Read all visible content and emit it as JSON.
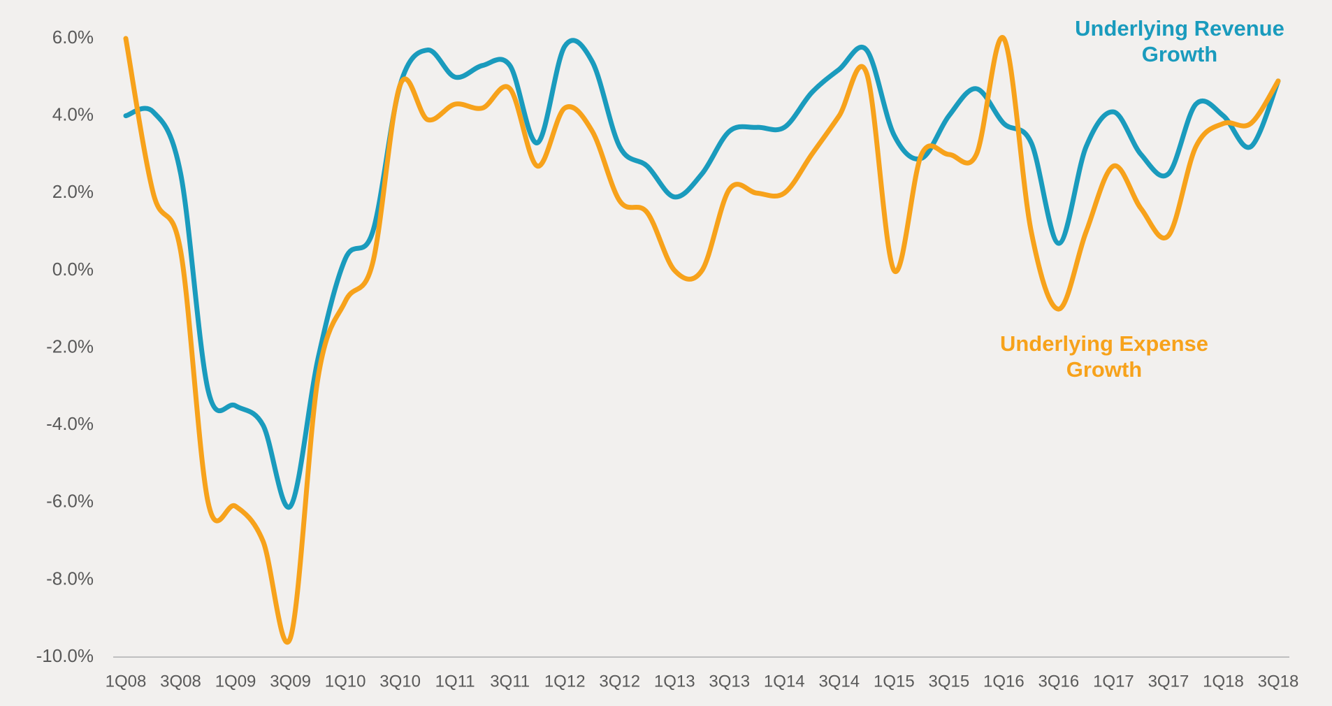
{
  "chart_data": {
    "type": "line",
    "categories": [
      "1Q08",
      null,
      "3Q08",
      null,
      "1Q09",
      null,
      "3Q09",
      null,
      "1Q10",
      null,
      "3Q10",
      null,
      "1Q11",
      null,
      "3Q11",
      null,
      "1Q12",
      null,
      "3Q12",
      null,
      "1Q13",
      null,
      "3Q13",
      null,
      "1Q14",
      null,
      "3Q14",
      null,
      "1Q15",
      null,
      "3Q15",
      null,
      "1Q16",
      null,
      "3Q16",
      null,
      "1Q17",
      null,
      "3Q17",
      null,
      "1Q18",
      null,
      "3Q18"
    ],
    "series": [
      {
        "name": "Underlying Revenue Growth",
        "color": "#1a9bbd",
        "values": [
          4.0,
          4.1,
          2.5,
          -3.1,
          -3.5,
          -4.0,
          -6.1,
          -2.3,
          0.3,
          1.0,
          4.8,
          5.7,
          5.0,
          5.3,
          5.3,
          3.3,
          5.8,
          5.4,
          3.2,
          2.7,
          1.9,
          2.5,
          3.6,
          3.7,
          3.7,
          4.6,
          5.2,
          5.7,
          3.5,
          2.9,
          4.0,
          4.7,
          3.8,
          3.3,
          0.7,
          3.2,
          4.1,
          3.0,
          2.5,
          4.3,
          4.0,
          3.2,
          4.9
        ]
      },
      {
        "name": "Underlying Expense Growth",
        "color": "#f7a21b",
        "values": [
          6.0,
          2.0,
          0.5,
          -6.0,
          -6.1,
          -7.0,
          -9.5,
          -2.8,
          -0.8,
          0.2,
          4.8,
          3.9,
          4.3,
          4.2,
          4.7,
          2.7,
          4.2,
          3.6,
          1.8,
          1.5,
          0.0,
          0.0,
          2.1,
          2.0,
          2.0,
          3.0,
          4.0,
          5.1,
          0.0,
          3.0,
          3.0,
          3.0,
          6.0,
          1.0,
          -1.0,
          1.0,
          2.7,
          1.6,
          0.9,
          3.2,
          3.8,
          3.8,
          4.9
        ]
      }
    ],
    "ylim": [
      -10,
      6
    ],
    "yticks": [
      {
        "value": 6,
        "label": "6.0%"
      },
      {
        "value": 4,
        "label": "4.0%"
      },
      {
        "value": 2,
        "label": "2.0%"
      },
      {
        "value": 0,
        "label": "0.0%"
      },
      {
        "value": -2,
        "label": "-2.0%"
      },
      {
        "value": -4,
        "label": "-4.0%"
      },
      {
        "value": -6,
        "label": "-6.0%"
      },
      {
        "value": -8,
        "label": "-8.0%"
      },
      {
        "value": -10,
        "label": "-10.0%"
      }
    ],
    "grid": false
  }
}
